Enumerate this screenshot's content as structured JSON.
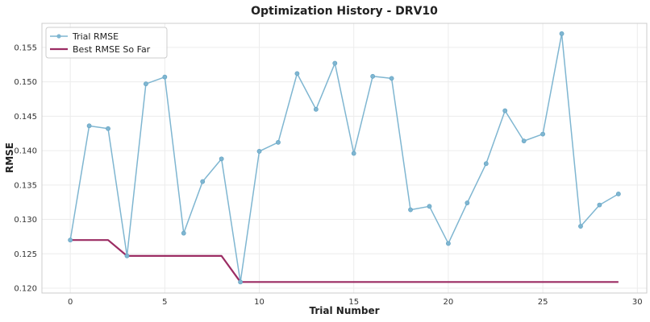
{
  "chart_data": {
    "type": "line",
    "title": "Optimization History - DRV10",
    "xlabel": "Trial Number",
    "ylabel": "RMSE",
    "xlim": [
      -1.5,
      30.5
    ],
    "ylim": [
      0.1193,
      0.1585
    ],
    "x_ticks": [
      0,
      5,
      10,
      15,
      20,
      25,
      30
    ],
    "y_ticks": [
      0.12,
      0.125,
      0.13,
      0.135,
      0.14,
      0.145,
      0.15,
      0.155
    ],
    "x_tick_labels": [
      "0",
      "5",
      "10",
      "15",
      "20",
      "25",
      "30"
    ],
    "y_tick_labels": [
      "0.120",
      "0.125",
      "0.130",
      "0.135",
      "0.140",
      "0.145",
      "0.150",
      "0.155"
    ],
    "grid": true,
    "legend_position": "top-left",
    "x": [
      0,
      1,
      2,
      3,
      4,
      5,
      6,
      7,
      8,
      9,
      10,
      11,
      12,
      13,
      14,
      15,
      16,
      17,
      18,
      19,
      20,
      21,
      22,
      23,
      24,
      25,
      26,
      27,
      28,
      29
    ],
    "series": [
      {
        "name": "Trial RMSE",
        "color": "#7fb6d1",
        "markers": true,
        "values": [
          0.127,
          0.1436,
          0.1432,
          0.1247,
          0.1497,
          0.1507,
          0.128,
          0.1355,
          0.1388,
          0.1209,
          0.1399,
          0.1412,
          0.1512,
          0.146,
          0.1527,
          0.1396,
          0.1508,
          0.1505,
          0.1314,
          0.1319,
          0.1265,
          0.1324,
          0.1381,
          0.1458,
          0.1414,
          0.1424,
          0.157,
          0.129,
          0.1321,
          0.1337
        ]
      },
      {
        "name": "Best RMSE So Far",
        "color": "#9b2c63",
        "markers": false,
        "values": [
          0.127,
          0.127,
          0.127,
          0.1247,
          0.1247,
          0.1247,
          0.1247,
          0.1247,
          0.1247,
          0.1209,
          0.1209,
          0.1209,
          0.1209,
          0.1209,
          0.1209,
          0.1209,
          0.1209,
          0.1209,
          0.1209,
          0.1209,
          0.1209,
          0.1209,
          0.1209,
          0.1209,
          0.1209,
          0.1209,
          0.1209,
          0.1209,
          0.1209,
          0.1209
        ]
      }
    ]
  }
}
